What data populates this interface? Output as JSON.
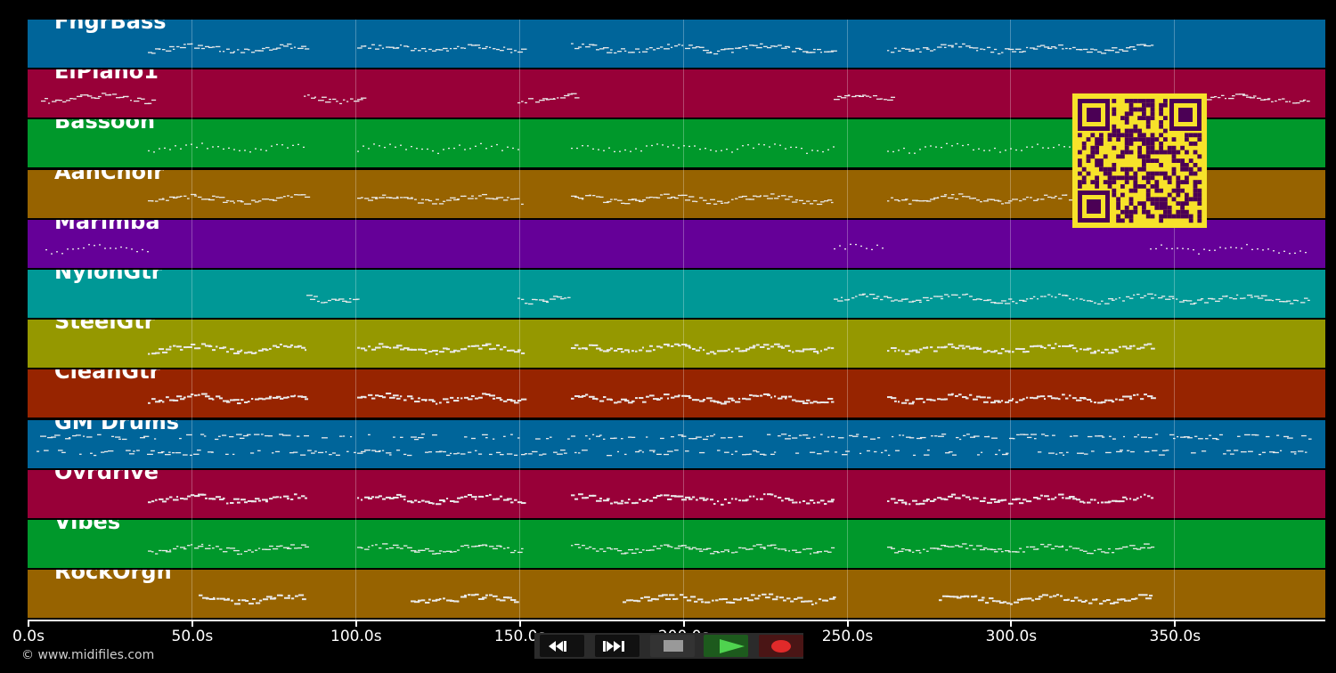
{
  "tracks": [
    {
      "name": "FngrBass",
      "color": "#00659a",
      "pattern": "line"
    },
    {
      "name": "ElPiano1",
      "color": "#980038",
      "pattern": "dash"
    },
    {
      "name": "Bassoon",
      "color": "#00982b",
      "pattern": "dots"
    },
    {
      "name": "AahChoir",
      "color": "#976300",
      "pattern": "dash"
    },
    {
      "name": "Marimba",
      "color": "#650098",
      "pattern": "dots"
    },
    {
      "name": "NylonGtr",
      "color": "#009896",
      "pattern": "line"
    },
    {
      "name": "SteelGtr",
      "color": "#959800",
      "pattern": "dense"
    },
    {
      "name": "CleanGtr",
      "color": "#972400",
      "pattern": "dense"
    },
    {
      "name": "GM Drums",
      "color": "#00659a",
      "pattern": "drums"
    },
    {
      "name": "Ovrdrive",
      "color": "#980038",
      "pattern": "dense"
    },
    {
      "name": "Vibes",
      "color": "#00982b",
      "pattern": "line"
    },
    {
      "name": "RockOrgn",
      "color": "#976300",
      "pattern": "dense"
    }
  ],
  "axis": {
    "ticks": [
      "0.0s",
      "50.0s",
      "100.0s",
      "150.0s",
      "200.0s",
      "250.0s",
      "300.0s",
      "350.0s"
    ]
  },
  "copyright": "© www.midifiles.com",
  "transport": {
    "rewind": "rewind-icon",
    "fast_forward": "fast-forward-icon",
    "stop": "stop-icon",
    "play": "play-icon",
    "record": "record-icon"
  }
}
